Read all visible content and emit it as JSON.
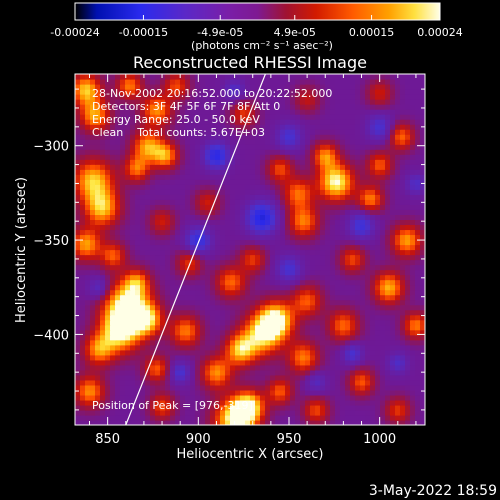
{
  "colorbar": {
    "ticks": [
      "-0.00024",
      "-0.00015",
      "-4.9e-05",
      "4.9e-05",
      "0.00015",
      "0.00024"
    ],
    "unit_label": "(photons cm⁻² s⁻¹ asec⁻²)",
    "vmin": -0.00024,
    "vmax": 0.00024
  },
  "chart_data": {
    "type": "heatmap",
    "title": "Reconstructed RHESSI Image",
    "xlabel": "Heliocentric X (arcsec)",
    "ylabel": "Heliocentric Y (arcsec)",
    "xlim": [
      832,
      1025
    ],
    "ylim": [
      -448,
      -262
    ],
    "x_ticks": [
      850,
      900,
      950,
      1000
    ],
    "y_ticks": [
      -300,
      -350,
      -400
    ],
    "x_tick_labels": [
      "850",
      "900",
      "950",
      "1000"
    ],
    "y_tick_labels": [
      "−300",
      "−350",
      "−400"
    ],
    "annotations": [
      "28-Nov-2002 20:16:52.000 to 20:22:52.000",
      "Detectors: 3F 4F 5F 6F 7F 8F Att 0",
      "Energy Range: 25.0 - 50.0 keV",
      "Clean    Total counts: 5.67E+03"
    ],
    "peak_label": "Position of Peak = [976,-319]",
    "limb_line": [
      [
        860,
        -448
      ],
      [
        937,
        -262
      ]
    ],
    "blobs": [
      {
        "x": 838,
        "y": -270,
        "v": 0.0002,
        "s": 6
      },
      {
        "x": 843,
        "y": -284,
        "v": 0.00018,
        "s": 6
      },
      {
        "x": 862,
        "y": -268,
        "v": 0.00016,
        "s": 5
      },
      {
        "x": 877,
        "y": -281,
        "v": 0.00017,
        "s": 6
      },
      {
        "x": 888,
        "y": -268,
        "v": 0.00013,
        "s": 5
      },
      {
        "x": 842,
        "y": -318,
        "v": 0.0002,
        "s": 8
      },
      {
        "x": 847,
        "y": -333,
        "v": 0.00019,
        "s": 7
      },
      {
        "x": 872,
        "y": -300,
        "v": 0.00018,
        "s": 6
      },
      {
        "x": 882,
        "y": -305,
        "v": 0.00017,
        "s": 5
      },
      {
        "x": 866,
        "y": -312,
        "v": 0.00015,
        "s": 5
      },
      {
        "x": 838,
        "y": -352,
        "v": 0.00018,
        "s": 6
      },
      {
        "x": 853,
        "y": -358,
        "v": 0.00014,
        "s": 5
      },
      {
        "x": 866,
        "y": -372,
        "v": 0.00013,
        "s": 5
      },
      {
        "x": 861,
        "y": -384,
        "v": 0.00024,
        "s": 9
      },
      {
        "x": 857,
        "y": -398,
        "v": 0.00023,
        "s": 8
      },
      {
        "x": 872,
        "y": -392,
        "v": 0.00018,
        "s": 6
      },
      {
        "x": 845,
        "y": -408,
        "v": 0.00016,
        "s": 6
      },
      {
        "x": 840,
        "y": -430,
        "v": 0.00017,
        "s": 6
      },
      {
        "x": 877,
        "y": -418,
        "v": 0.00014,
        "s": 5
      },
      {
        "x": 893,
        "y": -398,
        "v": 0.00016,
        "s": 6
      },
      {
        "x": 880,
        "y": -438,
        "v": 0.00013,
        "s": 5
      },
      {
        "x": 910,
        "y": -420,
        "v": 0.00017,
        "s": 6
      },
      {
        "x": 920,
        "y": -445,
        "v": 0.00024,
        "s": 8
      },
      {
        "x": 928,
        "y": -438,
        "v": 0.00021,
        "s": 6
      },
      {
        "x": 945,
        "y": -430,
        "v": 0.00014,
        "s": 5
      },
      {
        "x": 935,
        "y": -400,
        "v": 0.0002,
        "s": 8
      },
      {
        "x": 943,
        "y": -392,
        "v": 0.00023,
        "s": 7
      },
      {
        "x": 923,
        "y": -408,
        "v": 0.00019,
        "s": 6
      },
      {
        "x": 958,
        "y": -412,
        "v": 0.00016,
        "s": 6
      },
      {
        "x": 918,
        "y": -372,
        "v": 0.00015,
        "s": 6
      },
      {
        "x": 930,
        "y": -360,
        "v": 0.00012,
        "s": 5
      },
      {
        "x": 960,
        "y": -382,
        "v": 0.00014,
        "s": 6
      },
      {
        "x": 976,
        "y": -319,
        "v": 0.00024,
        "s": 7
      },
      {
        "x": 970,
        "y": -305,
        "v": 0.00016,
        "s": 5
      },
      {
        "x": 955,
        "y": -325,
        "v": 0.00015,
        "s": 6
      },
      {
        "x": 958,
        "y": -340,
        "v": 0.00016,
        "s": 6
      },
      {
        "x": 945,
        "y": -312,
        "v": 0.00013,
        "s": 5
      },
      {
        "x": 995,
        "y": -328,
        "v": 0.00016,
        "s": 5
      },
      {
        "x": 1000,
        "y": -310,
        "v": 0.00014,
        "s": 5
      },
      {
        "x": 1012,
        "y": -295,
        "v": 0.00015,
        "s": 5
      },
      {
        "x": 1015,
        "y": -350,
        "v": 0.00018,
        "s": 6
      },
      {
        "x": 1005,
        "y": -375,
        "v": 0.00019,
        "s": 6
      },
      {
        "x": 1020,
        "y": -395,
        "v": 0.00016,
        "s": 5
      },
      {
        "x": 985,
        "y": -360,
        "v": 0.00013,
        "s": 5
      },
      {
        "x": 980,
        "y": -395,
        "v": 0.00015,
        "s": 6
      },
      {
        "x": 990,
        "y": -425,
        "v": 0.00014,
        "s": 5
      },
      {
        "x": 965,
        "y": -440,
        "v": 0.00013,
        "s": 5
      },
      {
        "x": 1010,
        "y": -440,
        "v": 0.00012,
        "s": 5
      },
      {
        "x": 925,
        "y": -283,
        "v": 0.00012,
        "s": 5
      },
      {
        "x": 905,
        "y": -330,
        "v": 0.0001,
        "s": 5
      },
      {
        "x": 880,
        "y": -340,
        "v": 0.0001,
        "s": 5
      },
      {
        "x": 895,
        "y": -362,
        "v": 0.00012,
        "s": 5
      },
      {
        "x": 1000,
        "y": -272,
        "v": 0.0001,
        "s": 5
      },
      {
        "x": 960,
        "y": -275,
        "v": 9e-05,
        "s": 5
      },
      {
        "x": 910,
        "y": -305,
        "v": -0.00018,
        "s": 5
      },
      {
        "x": 935,
        "y": -338,
        "v": -0.0002,
        "s": 6
      },
      {
        "x": 900,
        "y": -350,
        "v": -0.00016,
        "s": 5
      },
      {
        "x": 950,
        "y": -295,
        "v": -0.00012,
        "s": 5
      },
      {
        "x": 1000,
        "y": -290,
        "v": -0.00012,
        "s": 5
      },
      {
        "x": 990,
        "y": -342,
        "v": -0.00014,
        "s": 5
      },
      {
        "x": 1020,
        "y": -320,
        "v": -0.0001,
        "s": 4
      },
      {
        "x": 950,
        "y": -365,
        "v": -0.00012,
        "s": 5
      },
      {
        "x": 985,
        "y": -410,
        "v": -0.00012,
        "s": 4
      },
      {
        "x": 890,
        "y": -420,
        "v": -0.00012,
        "s": 4
      },
      {
        "x": 845,
        "y": -375,
        "v": -0.0001,
        "s": 4
      },
      {
        "x": 920,
        "y": -270,
        "v": -0.0001,
        "s": 4
      },
      {
        "x": 1010,
        "y": -415,
        "v": -0.0001,
        "s": 4
      },
      {
        "x": 965,
        "y": -425,
        "v": -9e-05,
        "s": 4
      }
    ]
  },
  "timestamp": "3-May-2022 18:59"
}
